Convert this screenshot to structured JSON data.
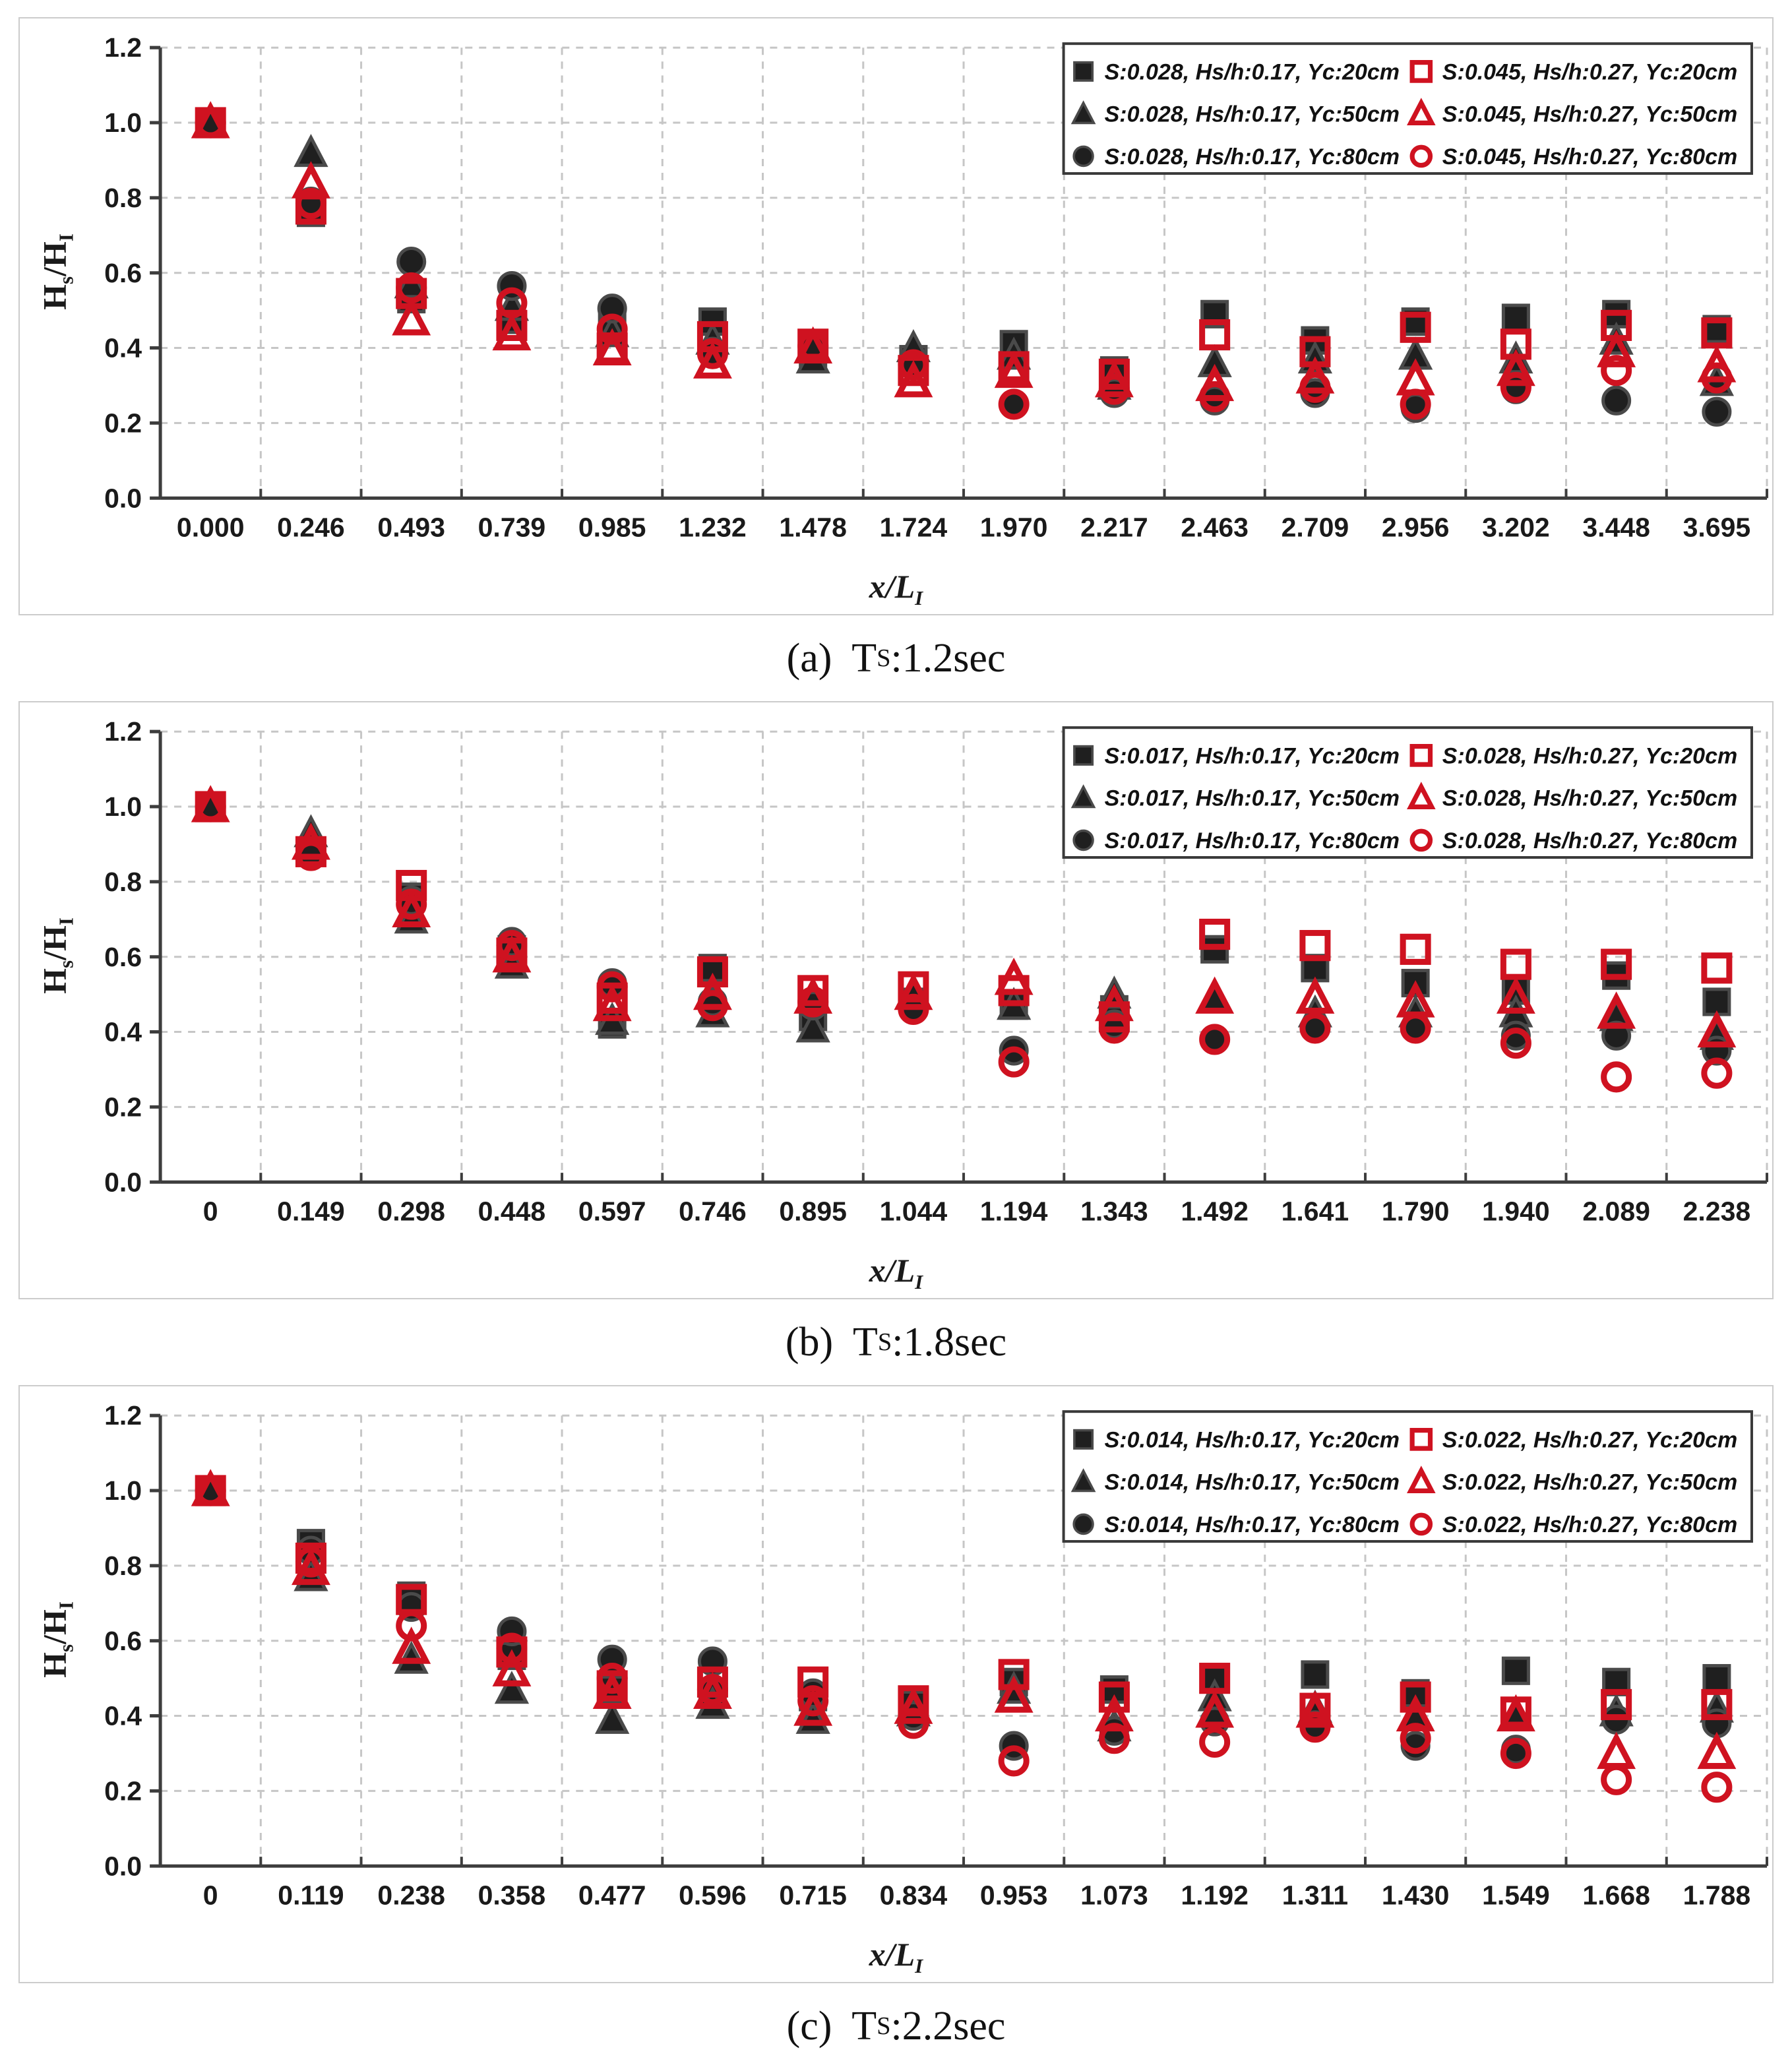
{
  "colors": {
    "black_series": "#1f1f1f",
    "black_series_halo": "#4a4a4a",
    "red_series": "#cf1220",
    "gridline": "#c6c6c6",
    "axis": "#3d3d3d",
    "legend_border": "#3a3a3a",
    "panel_border": "#cccccc",
    "background": "#ffffff"
  },
  "chart_data": [
    {
      "type": "scatter",
      "caption": {
        "pre": "(a)  T",
        "sub": "S",
        "post": ":1.2sec"
      },
      "ylabel": {
        "pre": "H",
        "sub1": "s",
        "mid": "/H",
        "sub2": "I"
      },
      "xlabel": {
        "pre": "x/L",
        "sub": "I"
      },
      "ylim": [
        0,
        1.2
      ],
      "yticks": [
        "0.0",
        "0.2",
        "0.4",
        "0.6",
        "0.8",
        "1.0",
        "1.2"
      ],
      "grid": true,
      "legend_position": "top-right",
      "categories": [
        "0.000",
        "0.246",
        "0.493",
        "0.739",
        "0.985",
        "1.232",
        "1.478",
        "1.724",
        "1.970",
        "2.217",
        "2.463",
        "2.709",
        "2.956",
        "3.202",
        "3.448",
        "3.695"
      ],
      "series": [
        {
          "name": "S:0.028, Hs/h:0.17, Yc:20cm",
          "marker": "square",
          "style": "filled",
          "values": [
            1.0,
            0.76,
            0.53,
            0.475,
            0.46,
            0.47,
            0.38,
            0.37,
            0.41,
            0.34,
            0.49,
            0.42,
            0.47,
            0.48,
            0.49,
            0.45
          ]
        },
        {
          "name": "S:0.028, Hs/h:0.17, Yc:50cm",
          "marker": "triangle",
          "style": "filled",
          "values": [
            1.0,
            0.92,
            0.57,
            0.51,
            0.44,
            0.42,
            0.37,
            0.4,
            0.38,
            0.3,
            0.36,
            0.37,
            0.38,
            0.37,
            0.42,
            0.31
          ]
        },
        {
          "name": "S:0.028, Hs/h:0.17, Yc:80cm",
          "marker": "circle",
          "style": "filled",
          "values": [
            1.0,
            0.79,
            0.63,
            0.565,
            0.505,
            0.39,
            0.4,
            0.355,
            0.25,
            0.28,
            0.26,
            0.28,
            0.24,
            0.29,
            0.26,
            0.23
          ]
        },
        {
          "name": "S:0.045, Hs/h:0.27, Yc:20cm",
          "marker": "square",
          "style": "open",
          "values": [
            1.0,
            0.77,
            0.545,
            0.46,
            0.4,
            0.43,
            0.41,
            0.34,
            0.35,
            0.33,
            0.435,
            0.39,
            0.455,
            0.41,
            0.46,
            0.44
          ]
        },
        {
          "name": "S:0.045, Hs/h:0.27, Yc:50cm",
          "marker": "triangle",
          "style": "open",
          "values": [
            1.0,
            0.84,
            0.475,
            0.435,
            0.395,
            0.36,
            0.4,
            0.31,
            0.335,
            0.31,
            0.3,
            0.32,
            0.315,
            0.34,
            0.39,
            0.35
          ]
        },
        {
          "name": "S:0.045, Hs/h:0.27, Yc:80cm",
          "marker": "circle",
          "style": "open",
          "values": [
            1.0,
            0.785,
            0.56,
            0.52,
            0.45,
            0.385,
            0.405,
            0.355,
            0.25,
            0.29,
            0.27,
            0.295,
            0.25,
            0.295,
            0.34,
            0.32
          ]
        }
      ]
    },
    {
      "type": "scatter",
      "caption": {
        "pre": "(b)  T",
        "sub": "S",
        "post": ":1.8sec"
      },
      "ylabel": {
        "pre": "H",
        "sub1": "s",
        "mid": "/H",
        "sub2": "I"
      },
      "xlabel": {
        "pre": "x/L",
        "sub": "I"
      },
      "ylim": [
        0,
        1.2
      ],
      "yticks": [
        "0.0",
        "0.2",
        "0.4",
        "0.6",
        "0.8",
        "1.0",
        "1.2"
      ],
      "grid": true,
      "legend_position": "top-right",
      "categories": [
        "0",
        "0.149",
        "0.298",
        "0.448",
        "0.597",
        "0.746",
        "0.895",
        "1.044",
        "1.194",
        "1.343",
        "1.492",
        "1.641",
        "1.790",
        "1.940",
        "2.089",
        "2.238"
      ],
      "series": [
        {
          "name": "S:0.017, Hs/h:0.17, Yc:20cm",
          "marker": "square",
          "style": "filled",
          "values": [
            1.0,
            0.88,
            0.76,
            0.62,
            0.42,
            0.57,
            0.44,
            0.48,
            0.47,
            0.46,
            0.62,
            0.57,
            0.53,
            0.51,
            0.55,
            0.48
          ]
        },
        {
          "name": "S:0.017, Hs/h:0.17, Yc:50cm",
          "marker": "triangle",
          "style": "filled",
          "values": [
            1.0,
            0.93,
            0.7,
            0.58,
            0.43,
            0.45,
            0.41,
            0.5,
            0.47,
            0.5,
            0.49,
            0.45,
            0.45,
            0.45,
            0.44,
            0.39
          ]
        },
        {
          "name": "S:0.017, Hs/h:0.17, Yc:80cm",
          "marker": "circle",
          "style": "filled",
          "values": [
            1.0,
            0.87,
            0.75,
            0.64,
            0.53,
            0.48,
            0.47,
            0.46,
            0.35,
            0.42,
            0.38,
            0.41,
            0.41,
            0.39,
            0.39,
            0.35
          ]
        },
        {
          "name": "S:0.028, Hs/h:0.27, Yc:20cm",
          "marker": "square",
          "style": "open",
          "values": [
            1.0,
            0.88,
            0.79,
            0.61,
            0.49,
            0.56,
            0.51,
            0.52,
            0.51,
            0.44,
            0.66,
            0.63,
            0.62,
            0.58,
            0.58,
            0.57
          ]
        },
        {
          "name": "S:0.028, Hs/h:0.27, Yc:50cm",
          "marker": "triangle",
          "style": "open",
          "values": [
            1.0,
            0.9,
            0.72,
            0.6,
            0.47,
            0.5,
            0.49,
            0.5,
            0.54,
            0.47,
            0.49,
            0.49,
            0.48,
            0.49,
            0.45,
            0.4
          ]
        },
        {
          "name": "S:0.028, Hs/h:0.27, Yc:80cm",
          "marker": "circle",
          "style": "open",
          "values": [
            1.0,
            0.87,
            0.74,
            0.63,
            0.52,
            0.47,
            0.48,
            0.46,
            0.32,
            0.41,
            0.38,
            0.41,
            0.41,
            0.37,
            0.28,
            0.29
          ]
        }
      ]
    },
    {
      "type": "scatter",
      "caption": {
        "pre": "(c)  T",
        "sub": "S",
        "post": ":2.2sec"
      },
      "ylabel": {
        "pre": "H",
        "sub1": "s",
        "mid": "/H",
        "sub2": "I"
      },
      "xlabel": {
        "pre": "x/L",
        "sub": "I"
      },
      "ylim": [
        0,
        1.2
      ],
      "yticks": [
        "0.0",
        "0.2",
        "0.4",
        "0.6",
        "0.8",
        "1.0",
        "1.2"
      ],
      "grid": true,
      "legend_position": "top-right",
      "categories": [
        "0",
        "0.119",
        "0.238",
        "0.358",
        "0.477",
        "0.596",
        "0.715",
        "0.834",
        "0.953",
        "1.073",
        "1.192",
        "1.311",
        "1.430",
        "1.549",
        "1.668",
        "1.788"
      ],
      "series": [
        {
          "name": "S:0.014, Hs/h:0.17, Yc:20cm",
          "marker": "square",
          "style": "filled",
          "values": [
            1.0,
            0.86,
            0.72,
            0.56,
            0.47,
            0.46,
            0.45,
            0.43,
            0.49,
            0.47,
            0.5,
            0.51,
            0.46,
            0.52,
            0.49,
            0.5
          ]
        },
        {
          "name": "S:0.014, Hs/h:0.17, Yc:50cm",
          "marker": "triangle",
          "style": "filled",
          "values": [
            1.0,
            0.77,
            0.55,
            0.47,
            0.39,
            0.43,
            0.39,
            0.41,
            0.47,
            0.37,
            0.45,
            0.42,
            0.4,
            0.4,
            0.41,
            0.42
          ]
        },
        {
          "name": "S:0.014, Hs/h:0.17, Yc:80cm",
          "marker": "circle",
          "style": "filled",
          "values": [
            1.0,
            0.84,
            0.69,
            0.625,
            0.55,
            0.545,
            0.46,
            0.4,
            0.32,
            0.36,
            0.385,
            0.375,
            0.32,
            0.31,
            0.39,
            0.38
          ]
        },
        {
          "name": "S:0.022, Hs/h:0.27, Yc:20cm",
          "marker": "square",
          "style": "open",
          "values": [
            1.0,
            0.82,
            0.71,
            0.57,
            0.48,
            0.49,
            0.49,
            0.44,
            0.51,
            0.45,
            0.5,
            0.42,
            0.45,
            0.41,
            0.43,
            0.43
          ]
        },
        {
          "name": "S:0.022, Hs/h:0.27, Yc:50cm",
          "marker": "triangle",
          "style": "open",
          "values": [
            1.0,
            0.79,
            0.58,
            0.52,
            0.46,
            0.46,
            0.415,
            0.42,
            0.45,
            0.4,
            0.41,
            0.41,
            0.4,
            0.4,
            0.3,
            0.3
          ]
        },
        {
          "name": "S:0.022, Hs/h:0.27, Yc:80cm",
          "marker": "circle",
          "style": "open",
          "values": [
            1.0,
            0.81,
            0.64,
            0.58,
            0.5,
            0.47,
            0.44,
            0.38,
            0.28,
            0.34,
            0.33,
            0.37,
            0.34,
            0.3,
            0.23,
            0.21
          ]
        }
      ]
    }
  ]
}
